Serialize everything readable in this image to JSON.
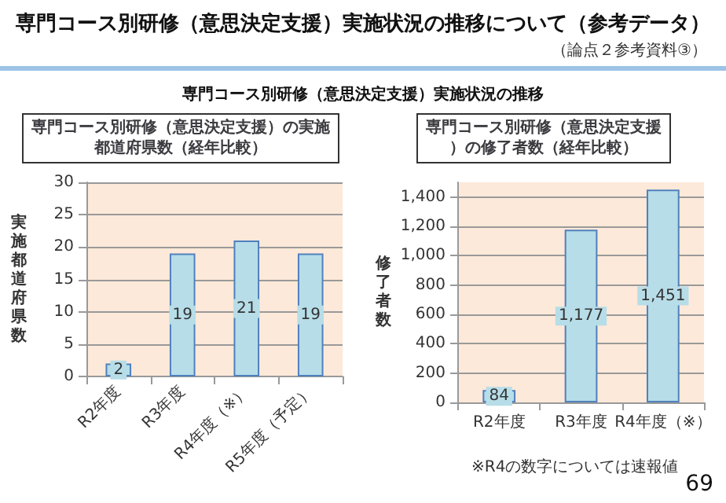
{
  "chart_data": [
    {
      "type": "bar",
      "title": "専門コース別研修（意思決定支援）の実施都道府県数（経年比較）",
      "ylabel": "実施都道府県数",
      "categories": [
        "R2年度",
        "R3年度",
        "R4年度（※）",
        "R5年度（予定）"
      ],
      "values": [
        2,
        19,
        21,
        19
      ],
      "color": "#b7dde8",
      "data_labels": true,
      "ylim": [
        0,
        30
      ],
      "yticks": [
        0,
        5,
        10,
        15,
        20,
        25,
        30
      ],
      "grid": "y",
      "annotations": [
        "専門コース別研修（意思決定支援）実施状況の推移について（参考データ）",
        "（論点２参考資料③）",
        "専門コース別研修（意思決定支援）実施状況の推移"
      ]
    },
    {
      "type": "bar",
      "title": "専門コース別研修（意思決定支援）の修了者数（経年比較）",
      "ylabel": "修了者数",
      "categories": [
        "R2年度",
        "R3年度",
        "R4年度（※）"
      ],
      "values": [
        84,
        1177,
        1451
      ],
      "value_labels": [
        "84",
        "1,177",
        "1,451"
      ],
      "color": "#b7dde8",
      "ylim": [
        0,
        1500
      ],
      "yticks": [
        0,
        {
          "value": 200,
          "label": "200"
        },
        {
          "value": 400,
          "label": "400"
        },
        {
          "value": 600,
          "label": "600"
        },
        {
          "value": 800,
          "label": "800"
        },
        {
          "value": 1000,
          "label": "1,000"
        },
        {
          "value": 1200,
          "label": "1,200"
        },
        {
          "value": 1400,
          "label": "1,400"
        }
      ],
      "grid": "y",
      "annotations": [
        "※R4の数字については速報値",
        "69"
      ]
    }
  ]
}
